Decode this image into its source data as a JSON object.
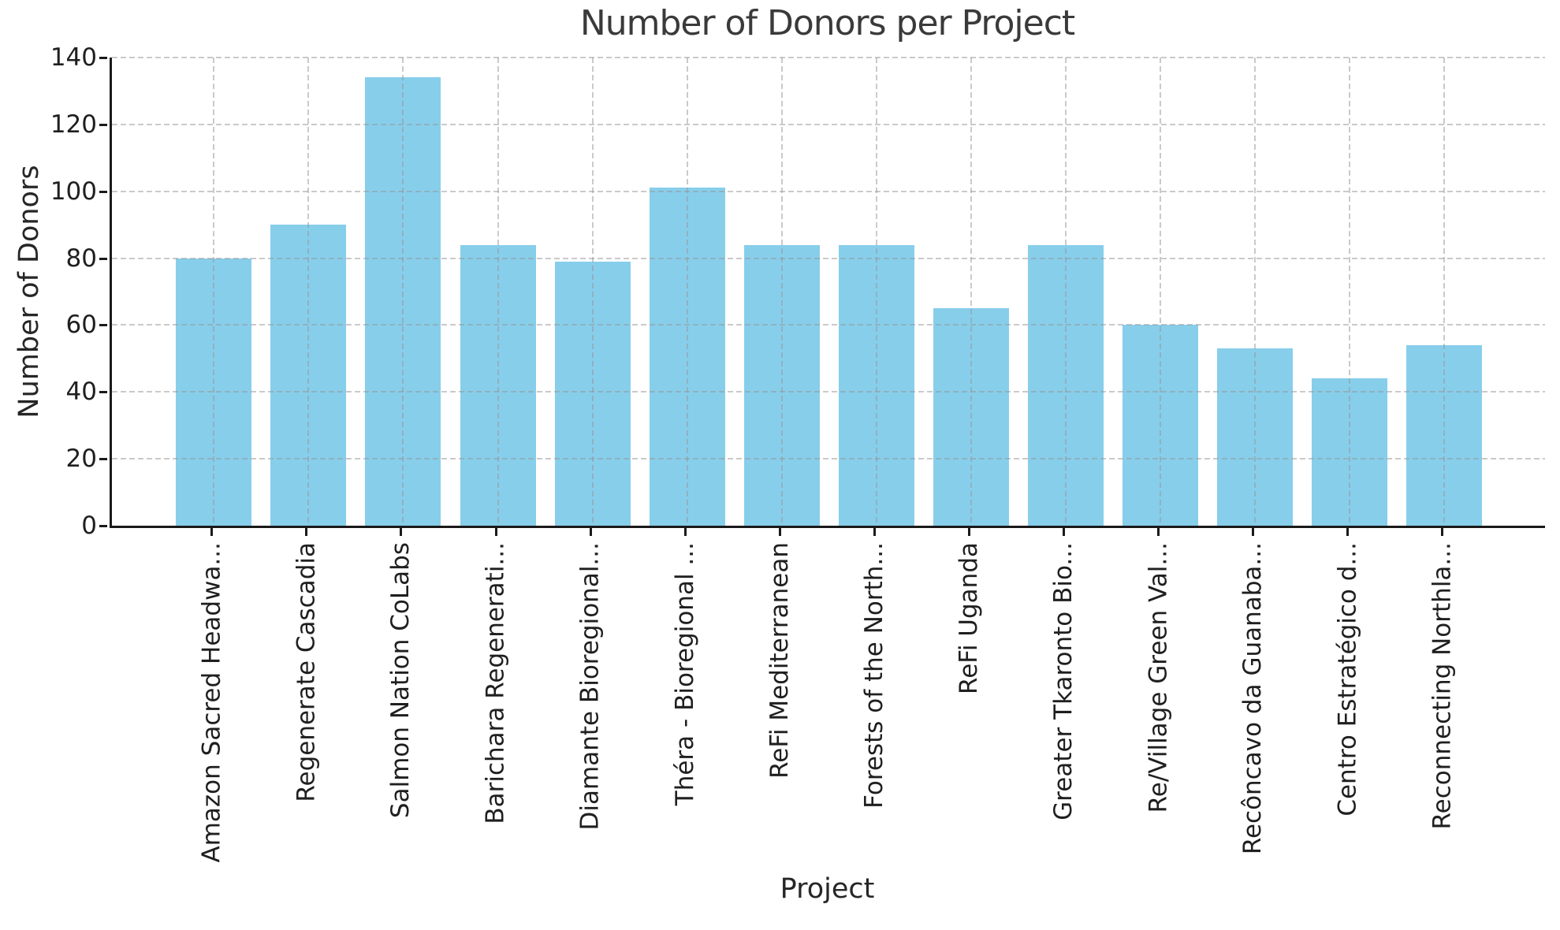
{
  "figure": {
    "title": "Number of Donors per Project",
    "xlabel": "Project",
    "ylabel": "Number of Donors"
  },
  "chart_data": {
    "type": "bar",
    "title": "Number of Donors per Project",
    "xlabel": "Project",
    "ylabel": "Number of Donors",
    "categories": [
      "Amazon Sacred Headwa...",
      "Regenerate Cascadia",
      "Salmon Nation CoLabs",
      "Barichara Regenerati...",
      "Diamante Bioregional...",
      "Théra - Bioregional ...",
      "ReFi Mediterranean",
      "Forests of the North...",
      "ReFi Uganda",
      "Greater Tkaronto Bio...",
      "Re/Village Green Val...",
      "Recôncavo da Guanaba...",
      "Centro Estratégico d...",
      "Reconnecting Northla..."
    ],
    "values": [
      80,
      90,
      134,
      84,
      79,
      101,
      84,
      84,
      65,
      84,
      60,
      53,
      44,
      54
    ],
    "ylim": [
      0,
      140
    ],
    "yticks": [
      0,
      20,
      40,
      60,
      80,
      100,
      120,
      140
    ],
    "legend": "none",
    "grid": "dashed both axes, drawn over bars",
    "colors": {
      "bar_fill": "#87CEEB",
      "spine": "#1a1a1a",
      "grid": "#c9c9c9",
      "title_text": "#3a3a3a",
      "tick_text": "#1f1f1f",
      "label_text": "#262626",
      "background": "#ffffff"
    }
  }
}
